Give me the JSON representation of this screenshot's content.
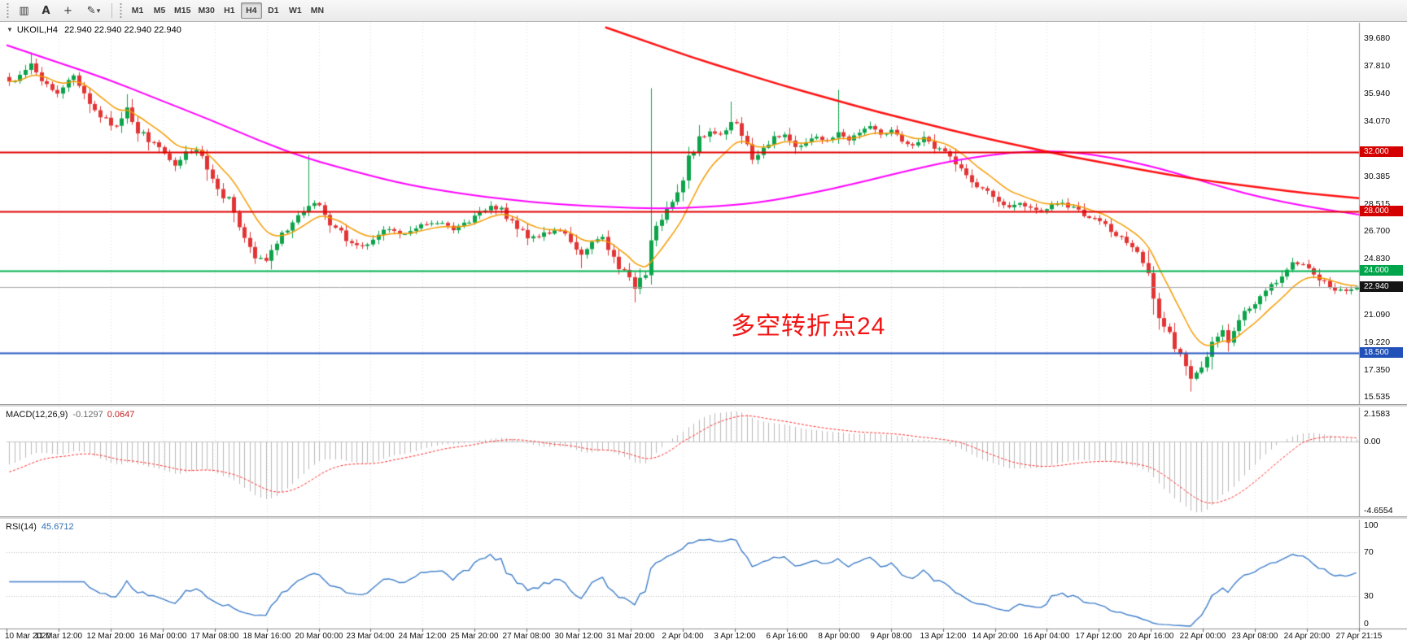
{
  "toolbar": {
    "tools": [
      {
        "name": "templates",
        "glyph": "▥"
      },
      {
        "name": "text",
        "glyph": "A"
      },
      {
        "name": "crosshair",
        "glyph": "+"
      },
      {
        "name": "draw",
        "glyph": "✎"
      }
    ],
    "draw_caret": "▾",
    "timeframes": [
      "M1",
      "M5",
      "M15",
      "M30",
      "H1",
      "H4",
      "D1",
      "W1",
      "MN"
    ],
    "active_timeframe": "H4"
  },
  "main_chart": {
    "collapse_glyph": "▼",
    "symbol_label": "UKOIL,H4",
    "ohlc_text": "22.940 22.940 22.940 22.940",
    "annotation": {
      "text": "多空转折点24",
      "color": "#f21414"
    },
    "price_axis": {
      "labels": [
        39.68,
        37.81,
        35.94,
        34.07,
        30.385,
        28.515,
        26.7,
        24.83,
        21.09,
        19.22,
        17.35,
        15.535
      ]
    }
  },
  "macd_panel": {
    "title": "MACD(12,26,9)",
    "value_main": "-0.1297",
    "value_signal": "0.0647",
    "params": {
      "fast": 12,
      "slow": 26,
      "signal": 9
    },
    "scale": {
      "top_label": "2.1583",
      "zero_label": "0.00",
      "bottom_label": "-4.6554",
      "vmax": 2.1583,
      "vmin": -4.6554
    }
  },
  "rsi_panel": {
    "title": "RSI(14)",
    "value_text": "45.6712",
    "period": 14,
    "levels": [
      100,
      70,
      30,
      0
    ],
    "level_lines": [
      70,
      30
    ]
  },
  "time_axis": {
    "labels": [
      "10 Mar 2020",
      "11 Mar 12:00",
      "12 Mar 20:00",
      "16 Mar 00:00",
      "17 Mar 08:00",
      "18 Mar 16:00",
      "20 Mar 00:00",
      "23 Mar 04:00",
      "24 Mar 12:00",
      "25 Mar 20:00",
      "27 Mar 08:00",
      "30 Mar 12:00",
      "31 Mar 20:00",
      "2 Apr 04:00",
      "3 Apr 12:00",
      "6 Apr 16:00",
      "8 Apr 00:00",
      "9 Apr 08:00",
      "13 Apr 12:00",
      "14 Apr 20:00",
      "16 Apr 04:00",
      "17 Apr 12:00",
      "20 Apr 16:00",
      "22 Apr 00:00",
      "23 Apr 08:00",
      "24 Apr 20:00",
      "27 Apr 21:15"
    ]
  },
  "chart_data": {
    "type": "candlestick",
    "symbol": "UKOIL",
    "timeframe": "H4",
    "candle_count": 253,
    "seed": 20200427,
    "colors": {
      "up": "#0ca34a",
      "down": "#e23434",
      "grid": "#dcdcdc",
      "macd_hist": "#b9b9b9",
      "macd_signal": "#ff2a2a",
      "rsi_line": "#3f7ec9"
    },
    "close_path_anchors": [
      [
        0,
        36.6
      ],
      [
        2,
        37.3
      ],
      [
        4,
        38.0
      ],
      [
        6,
        36.8
      ],
      [
        9,
        35.9
      ],
      [
        12,
        37.1
      ],
      [
        14,
        36.0
      ],
      [
        16,
        35.0
      ],
      [
        18,
        34.1
      ],
      [
        20,
        33.7
      ],
      [
        22,
        34.9
      ],
      [
        24,
        33.5
      ],
      [
        26,
        32.8
      ],
      [
        29,
        32.1
      ],
      [
        31,
        31.0
      ],
      [
        33,
        31.9
      ],
      [
        35,
        32.2
      ],
      [
        37,
        30.7
      ],
      [
        39,
        29.3
      ],
      [
        41,
        28.8
      ],
      [
        44,
        26.3
      ],
      [
        46,
        25.1
      ],
      [
        48,
        24.8
      ],
      [
        50,
        26.0
      ],
      [
        52,
        27.0
      ],
      [
        54,
        27.8
      ],
      [
        56,
        28.4
      ],
      [
        58,
        28.6
      ],
      [
        60,
        27.2
      ],
      [
        62,
        26.5
      ],
      [
        64,
        25.8
      ],
      [
        66,
        25.6
      ],
      [
        68,
        26.2
      ],
      [
        71,
        26.9
      ],
      [
        74,
        26.4
      ],
      [
        77,
        27.1
      ],
      [
        80,
        27.3
      ],
      [
        83,
        26.8
      ],
      [
        86,
        27.3
      ],
      [
        88,
        28.0
      ],
      [
        90,
        28.4
      ],
      [
        92,
        28.1
      ],
      [
        94,
        27.3
      ],
      [
        97,
        26.3
      ],
      [
        100,
        26.5
      ],
      [
        103,
        26.9
      ],
      [
        105,
        25.8
      ],
      [
        107,
        25.1
      ],
      [
        109,
        25.9
      ],
      [
        111,
        26.3
      ],
      [
        113,
        24.9
      ],
      [
        115,
        23.9
      ],
      [
        117,
        22.9
      ],
      [
        119,
        23.5
      ],
      [
        120,
        26.5
      ],
      [
        121,
        26.9
      ],
      [
        123,
        28.2
      ],
      [
        125,
        29.6
      ],
      [
        127,
        31.4
      ],
      [
        129,
        32.8
      ],
      [
        131,
        33.5
      ],
      [
        133,
        33.1
      ],
      [
        135,
        34.1
      ],
      [
        137,
        33.4
      ],
      [
        139,
        31.6
      ],
      [
        141,
        32.2
      ],
      [
        143,
        32.9
      ],
      [
        145,
        33.3
      ],
      [
        147,
        32.4
      ],
      [
        149,
        32.6
      ],
      [
        151,
        33.0
      ],
      [
        153,
        32.7
      ],
      [
        155,
        33.3
      ],
      [
        157,
        32.8
      ],
      [
        159,
        33.2
      ],
      [
        161,
        33.7
      ],
      [
        163,
        33.2
      ],
      [
        165,
        33.5
      ],
      [
        167,
        32.8
      ],
      [
        169,
        32.5
      ],
      [
        171,
        33.0
      ],
      [
        173,
        32.4
      ],
      [
        175,
        32.0
      ],
      [
        177,
        31.4
      ],
      [
        179,
        30.5
      ],
      [
        181,
        29.8
      ],
      [
        183,
        29.2
      ],
      [
        185,
        28.7
      ],
      [
        187,
        28.3
      ],
      [
        189,
        28.6
      ],
      [
        191,
        28.2
      ],
      [
        193,
        28.0
      ],
      [
        195,
        28.4
      ],
      [
        197,
        28.6
      ],
      [
        199,
        28.2
      ],
      [
        201,
        27.8
      ],
      [
        203,
        27.5
      ],
      [
        205,
        27.0
      ],
      [
        207,
        26.5
      ],
      [
        209,
        26.0
      ],
      [
        211,
        25.3
      ],
      [
        213,
        23.6
      ],
      [
        215,
        21.3
      ],
      [
        217,
        19.6
      ],
      [
        219,
        18.3
      ],
      [
        221,
        16.8
      ],
      [
        223,
        17.7
      ],
      [
        225,
        19.0
      ],
      [
        227,
        19.9
      ],
      [
        228,
        19.3
      ],
      [
        230,
        20.8
      ],
      [
        232,
        21.6
      ],
      [
        234,
        22.2
      ],
      [
        236,
        22.9
      ],
      [
        238,
        23.7
      ],
      [
        240,
        24.6
      ],
      [
        242,
        24.3
      ],
      [
        244,
        23.9
      ],
      [
        246,
        23.2
      ],
      [
        248,
        22.8
      ],
      [
        250,
        22.6
      ],
      [
        252,
        22.94
      ]
    ],
    "special_candles": [
      {
        "i": 4,
        "high": 38.7
      },
      {
        "i": 22,
        "high": 35.9
      },
      {
        "i": 56,
        "high": 31.8
      },
      {
        "i": 107,
        "low": 24.2
      },
      {
        "i": 117,
        "low": 21.9
      },
      {
        "i": 120,
        "high": 36.3,
        "low": 23.1
      },
      {
        "i": 135,
        "high": 35.4
      },
      {
        "i": 155,
        "high": 36.2
      },
      {
        "i": 213,
        "high": 25.4
      },
      {
        "i": 221,
        "low": 15.9
      }
    ],
    "overlays": [
      {
        "name": "ma-fast",
        "type": "ema",
        "period": 10,
        "color": "#f59b00",
        "width": 1.5
      },
      {
        "name": "ma-mid",
        "type": "points",
        "color": "#ff00ff",
        "width": 2,
        "points": [
          [
            0,
            39.2
          ],
          [
            10,
            38.0
          ],
          [
            19,
            36.9
          ],
          [
            28,
            35.6
          ],
          [
            38,
            34.2
          ],
          [
            47,
            32.8
          ],
          [
            56,
            31.6
          ],
          [
            66,
            30.6
          ],
          [
            75,
            29.8
          ],
          [
            85,
            29.2
          ],
          [
            94,
            28.8
          ],
          [
            103,
            28.5
          ],
          [
            113,
            28.3
          ],
          [
            122,
            28.2
          ],
          [
            131,
            28.3
          ],
          [
            141,
            28.6
          ],
          [
            150,
            29.2
          ],
          [
            159,
            29.9
          ],
          [
            169,
            30.8
          ],
          [
            178,
            31.5
          ],
          [
            188,
            32.0
          ],
          [
            197,
            32.1
          ],
          [
            206,
            31.7
          ],
          [
            216,
            30.9
          ],
          [
            225,
            29.9
          ],
          [
            234,
            29.0
          ],
          [
            244,
            28.3
          ],
          [
            253,
            27.8
          ]
        ]
      },
      {
        "name": "ma-slow",
        "type": "points",
        "color": "#ff1010",
        "width": 2.5,
        "points": [
          [
            112,
            40.4
          ],
          [
            120,
            39.4
          ],
          [
            128,
            38.4
          ],
          [
            136,
            37.5
          ],
          [
            145,
            36.5
          ],
          [
            154,
            35.6
          ],
          [
            163,
            34.7
          ],
          [
            172,
            33.9
          ],
          [
            181,
            33.1
          ],
          [
            190,
            32.4
          ],
          [
            199,
            31.7
          ],
          [
            208,
            31.1
          ],
          [
            217,
            30.5
          ],
          [
            226,
            30.0
          ],
          [
            235,
            29.6
          ],
          [
            244,
            29.2
          ],
          [
            253,
            28.9
          ]
        ]
      }
    ],
    "hlines": [
      {
        "price": 32.0,
        "label": "32.000",
        "color": "#e00000",
        "badge": "#d40000",
        "width": 2
      },
      {
        "price": 28.0,
        "label": "28.000",
        "color": "#e00000",
        "badge": "#d40000",
        "width": 2
      },
      {
        "price": 24.0,
        "label": "24.000",
        "color": "#00b14f",
        "badge": "#00a44a",
        "width": 2
      },
      {
        "price": 18.5,
        "label": "18.500",
        "color": "#2456c0",
        "badge": "#2050b8",
        "width": 2
      }
    ],
    "bid": {
      "price": 22.94,
      "label": "22.940",
      "line_color": "#a8a8a8",
      "badge": "#151515"
    }
  }
}
